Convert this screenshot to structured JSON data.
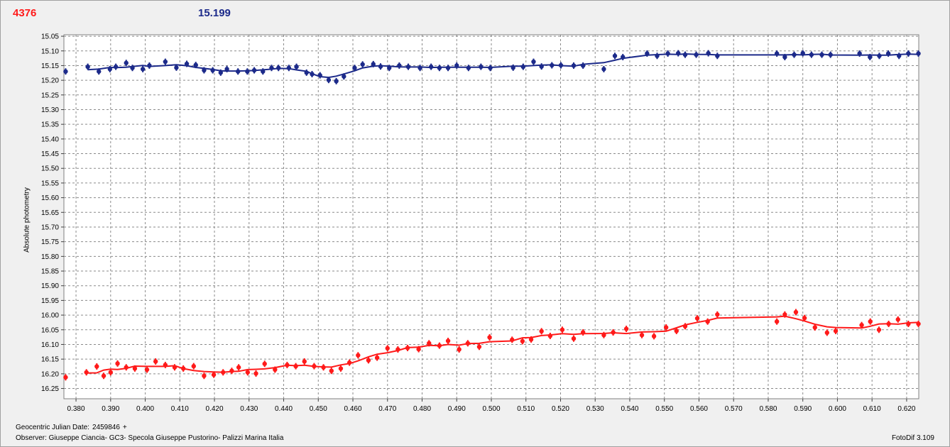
{
  "header": {
    "left_value": "4376",
    "right_value": "15.199"
  },
  "footer": {
    "date_label": "Geocentric Julian Date:",
    "date_value": "2459846",
    "date_suffix": "+",
    "observer": "Observer: Giuseppe Ciancia- GC3- Specola Giuseppe Pustorino- Palizzi Marina Italia",
    "software": "FotoDif 3.109"
  },
  "chart_data": {
    "type": "scatter",
    "ylabel": "Absolute photometry",
    "xlabel": "",
    "xlim": [
      0.3765,
      0.6235
    ],
    "ylim": [
      16.285,
      15.045
    ],
    "y_inverted": true,
    "grid": true,
    "x_ticks": [
      "0.380",
      "0.390",
      "0.400",
      "0.410",
      "0.420",
      "0.430",
      "0.440",
      "0.450",
      "0.460",
      "0.470",
      "0.480",
      "0.490",
      "0.500",
      "0.510",
      "0.520",
      "0.530",
      "0.540",
      "0.550",
      "0.560",
      "0.570",
      "0.580",
      "0.590",
      "0.600",
      "0.610",
      "0.620"
    ],
    "y_ticks": [
      "15.05",
      "15.10",
      "15.15",
      "15.20",
      "15.25",
      "15.30",
      "15.35",
      "15.40",
      "15.45",
      "15.50",
      "15.55",
      "15.60",
      "15.65",
      "15.70",
      "15.75",
      "15.80",
      "15.85",
      "15.90",
      "15.95",
      "16.00",
      "16.05",
      "16.10",
      "16.15",
      "16.20",
      "16.25"
    ],
    "series": [
      {
        "color": "#1c2a8a",
        "x": [
          0.377,
          0.3834,
          0.3866,
          0.3898,
          0.3915,
          0.3945,
          0.3963,
          0.3993,
          0.4012,
          0.4058,
          0.409,
          0.412,
          0.4146,
          0.417,
          0.4195,
          0.4218,
          0.4236,
          0.4268,
          0.4295,
          0.4315,
          0.434,
          0.4365,
          0.4385,
          0.4415,
          0.4437,
          0.4466,
          0.4482,
          0.4505,
          0.453,
          0.4552,
          0.4574,
          0.4605,
          0.4628,
          0.4659,
          0.468,
          0.4705,
          0.4734,
          0.476,
          0.4794,
          0.4826,
          0.485,
          0.4875,
          0.49,
          0.4934,
          0.497,
          0.4997,
          0.5063,
          0.5092,
          0.5122,
          0.5145,
          0.5175,
          0.5201,
          0.5238,
          0.5265,
          0.5325,
          0.5357,
          0.538,
          0.545,
          0.5479,
          0.551,
          0.554,
          0.556,
          0.5592,
          0.5627,
          0.5653,
          0.5825,
          0.5848,
          0.5875,
          0.59,
          0.5925,
          0.5955,
          0.598,
          0.6064,
          0.6094,
          0.6121,
          0.6147,
          0.6178,
          0.6205,
          0.6234
        ],
        "y": [
          15.17,
          15.154,
          15.17,
          15.162,
          15.154,
          15.141,
          15.158,
          15.162,
          15.15,
          15.137,
          15.157,
          15.144,
          15.148,
          15.166,
          15.166,
          15.174,
          15.162,
          15.17,
          15.17,
          15.166,
          15.17,
          15.158,
          15.158,
          15.158,
          15.154,
          15.174,
          15.179,
          15.183,
          15.199,
          15.203,
          15.187,
          15.158,
          15.146,
          15.145,
          15.153,
          15.158,
          15.15,
          15.154,
          15.158,
          15.154,
          15.158,
          15.158,
          15.15,
          15.158,
          15.154,
          15.158,
          15.157,
          15.154,
          15.137,
          15.153,
          15.149,
          15.149,
          15.15,
          15.15,
          15.162,
          15.117,
          15.121,
          15.109,
          15.117,
          15.109,
          15.108,
          15.113,
          15.113,
          15.108,
          15.117,
          15.109,
          15.121,
          15.113,
          15.108,
          15.113,
          15.113,
          15.113,
          15.109,
          15.121,
          15.117,
          15.109,
          15.117,
          15.109,
          15.109
        ]
      },
      {
        "color": "#ff1a1a",
        "x": [
          0.377,
          0.383,
          0.386,
          0.388,
          0.39,
          0.392,
          0.3945,
          0.397,
          0.4005,
          0.403,
          0.4058,
          0.4085,
          0.411,
          0.414,
          0.417,
          0.4198,
          0.4225,
          0.425,
          0.427,
          0.4296,
          0.432,
          0.4345,
          0.4375,
          0.441,
          0.4435,
          0.446,
          0.4488,
          0.4515,
          0.4538,
          0.4565,
          0.459,
          0.4615,
          0.4645,
          0.467,
          0.47,
          0.473,
          0.4758,
          0.479,
          0.482,
          0.485,
          0.4875,
          0.4907,
          0.4932,
          0.4965,
          0.4995,
          0.506,
          0.509,
          0.5115,
          0.5145,
          0.517,
          0.5205,
          0.5238,
          0.5265,
          0.5325,
          0.5352,
          0.539,
          0.5435,
          0.547,
          0.5505,
          0.5535,
          0.556,
          0.5595,
          0.5625,
          0.5653,
          0.5825,
          0.5848,
          0.588,
          0.5905,
          0.5935,
          0.597,
          0.5995,
          0.607,
          0.6095,
          0.612,
          0.6148,
          0.6175,
          0.6205,
          0.6234
        ],
        "y": [
          16.212,
          16.195,
          16.175,
          16.207,
          16.195,
          16.165,
          16.178,
          16.182,
          16.186,
          16.158,
          16.17,
          16.178,
          16.182,
          16.174,
          16.207,
          16.203,
          16.195,
          16.19,
          16.178,
          16.195,
          16.199,
          16.166,
          16.186,
          16.17,
          16.174,
          16.158,
          16.174,
          16.178,
          16.19,
          16.182,
          16.162,
          16.137,
          16.154,
          16.145,
          16.113,
          16.117,
          16.112,
          16.116,
          16.096,
          16.104,
          16.088,
          16.117,
          16.096,
          16.108,
          16.076,
          16.084,
          16.089,
          16.083,
          16.055,
          16.071,
          16.05,
          16.08,
          16.059,
          16.068,
          16.059,
          16.047,
          16.068,
          16.072,
          16.042,
          16.054,
          16.038,
          16.011,
          16.022,
          15.998,
          16.022,
          15.998,
          15.99,
          16.01,
          16.042,
          16.06,
          16.054,
          16.034,
          16.022,
          16.05,
          16.03,
          16.015,
          16.03,
          16.03
        ]
      }
    ]
  }
}
